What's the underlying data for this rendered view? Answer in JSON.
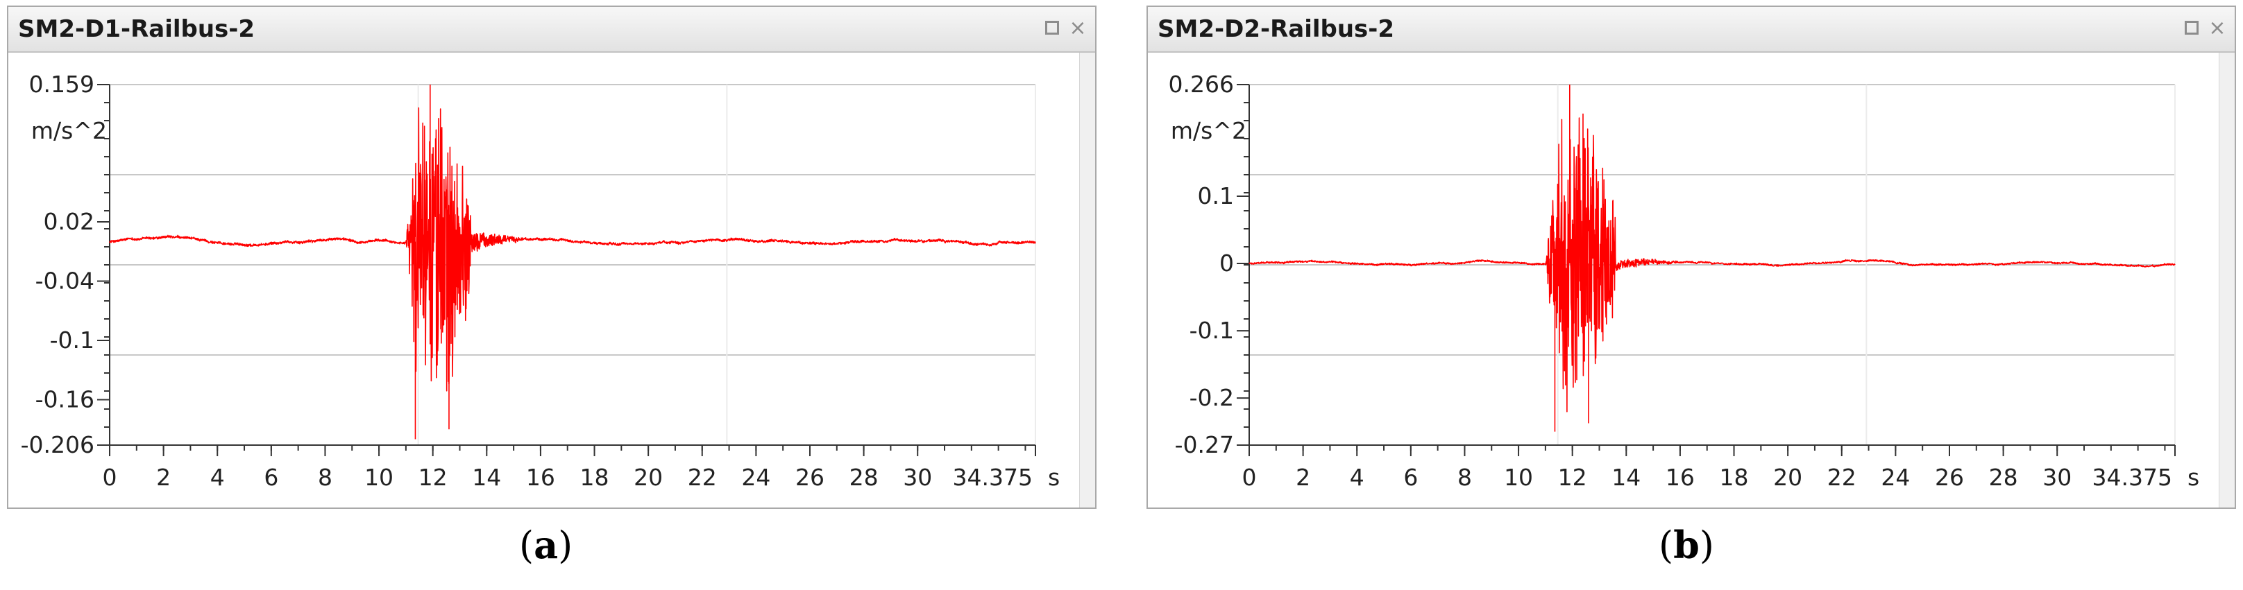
{
  "colors": {
    "signal": "#ff0000",
    "grid": "#c8c8c8",
    "axis": "#333333"
  },
  "panels": [
    {
      "title": "SM2-D1-Railbus-2",
      "caption": "a",
      "unit_label": "m/s^2",
      "x_unit_label": "s"
    },
    {
      "title": "SM2-D2-Railbus-2",
      "caption": "b",
      "unit_label": "m/s^2",
      "x_unit_label": "s"
    }
  ],
  "chart_data": [
    {
      "type": "line",
      "title": "SM2-D1-Railbus-2",
      "xlabel": "s",
      "ylabel": "m/s^2",
      "xlim": [
        0,
        34.375
      ],
      "ylim": [
        -0.206,
        0.159
      ],
      "x_ticks": [
        0,
        2,
        4,
        6,
        8,
        10,
        12,
        14,
        16,
        18,
        20,
        22,
        24,
        26,
        28,
        30,
        34.375
      ],
      "y_ticks": [
        0.159,
        0.02,
        -0.04,
        -0.1,
        -0.16,
        -0.206
      ],
      "y_tick_labels": [
        "0.159",
        "0.02",
        "-0.04",
        "-0.1",
        "-0.16",
        "-0.206"
      ],
      "grid": true,
      "series": [
        {
          "baseline": 0.0,
          "noise": 0.002,
          "burst": {
            "start": 11.0,
            "end": 13.4,
            "max": 0.159,
            "min": -0.2
          },
          "tail": {
            "start": 13.4,
            "end": 15.5,
            "amplitude": 0.01
          }
        }
      ]
    },
    {
      "type": "line",
      "title": "SM2-D2-Railbus-2",
      "xlabel": "s",
      "ylabel": "m/s^2",
      "xlim": [
        0,
        34.375
      ],
      "ylim": [
        -0.27,
        0.266
      ],
      "x_ticks": [
        0,
        2,
        4,
        6,
        8,
        10,
        12,
        14,
        16,
        18,
        20,
        22,
        24,
        26,
        28,
        30,
        34.375
      ],
      "y_ticks": [
        0.266,
        0.1,
        0,
        -0.1,
        -0.2,
        -0.27
      ],
      "y_tick_labels": [
        "0.266",
        "0.1",
        "0",
        "-0.1",
        "-0.2",
        "-0.27"
      ],
      "grid": true,
      "series": [
        {
          "baseline": 0.0,
          "noise": 0.002,
          "burst": {
            "start": 11.0,
            "end": 13.6,
            "max": 0.266,
            "min": -0.25
          },
          "tail": {
            "start": 13.6,
            "end": 16.0,
            "amplitude": 0.008
          }
        }
      ]
    }
  ]
}
